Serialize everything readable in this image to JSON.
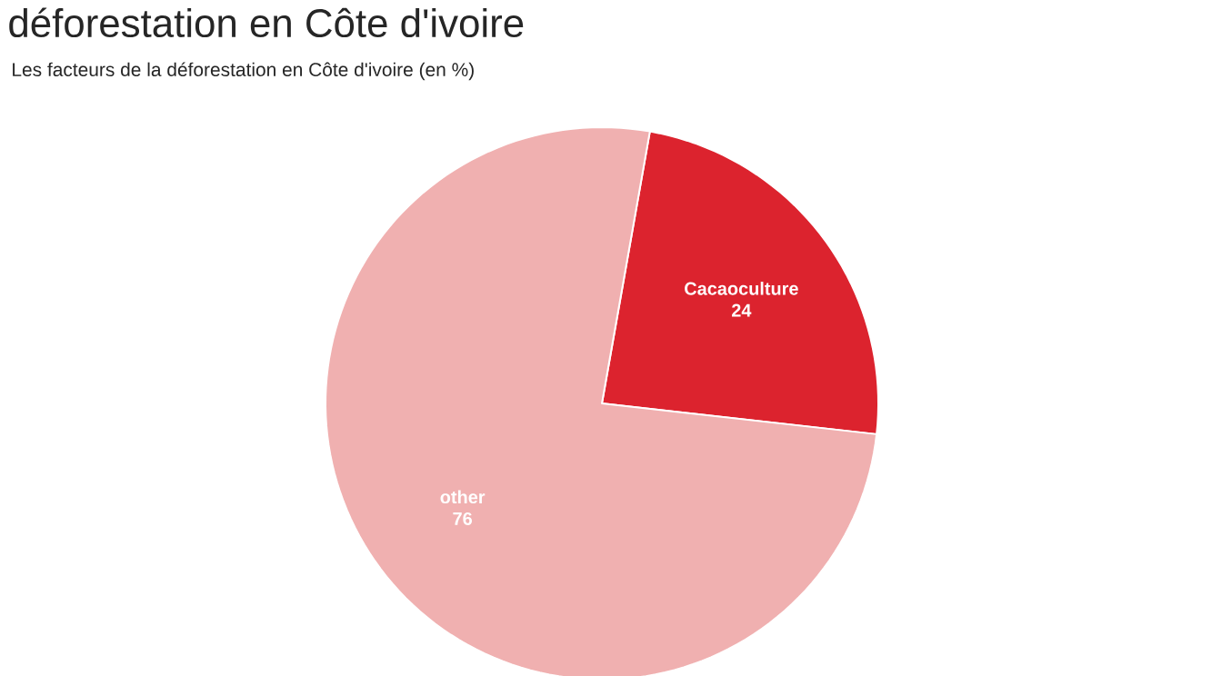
{
  "chart_data": {
    "type": "pie",
    "title": "déforestation en Côte d'ivoire",
    "subtitle": "Les facteurs de la déforestation en Côte d'ivoire (en %)",
    "categories": [
      "Cacaoculture",
      "other"
    ],
    "values": [
      24,
      76
    ],
    "colors": [
      "#dc232e",
      "#f0b0b0"
    ],
    "data_labels": true
  }
}
